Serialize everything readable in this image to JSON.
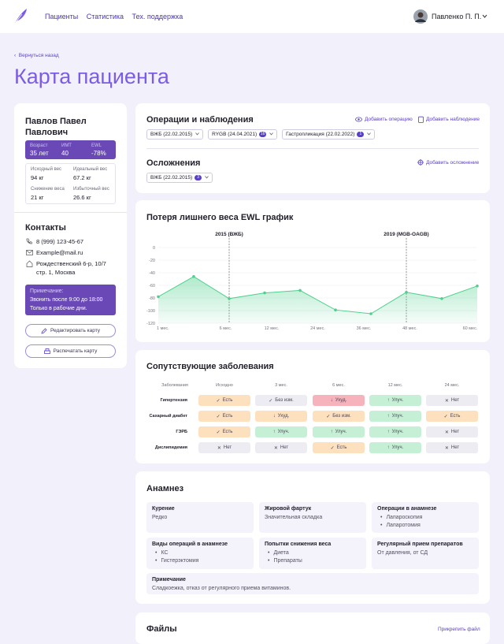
{
  "header": {
    "nav": [
      "Пациенты",
      "Статистика",
      "Тех. поддержка"
    ],
    "user": "Павленко П. П."
  },
  "back": "Вернуться назад",
  "title": "Карта пациента",
  "patient": {
    "name": "Павлов Павел Павлович",
    "stats": [
      {
        "label": "Возраст",
        "value": "35 лет"
      },
      {
        "label": "ИМТ",
        "value": "40"
      },
      {
        "label": "EWL",
        "value": "-78%"
      }
    ],
    "weights": [
      {
        "label": "Исходный вес",
        "value": "94 кг"
      },
      {
        "label": "Идеальный вес",
        "value": "67.2 кг"
      },
      {
        "label": "Снижение веса",
        "value": "21 кг"
      },
      {
        "label": "Избыточный вес",
        "value": "26.6 кг"
      }
    ],
    "contacts_title": "Контакты",
    "phone": "8 (999) 123-45-67",
    "email": "Example@mail.ru",
    "address": [
      "Рождественский 6-р, 10/7",
      "стр. 1, Москва"
    ],
    "note": {
      "title": "Примечание:",
      "lines": [
        "Звонить после 9:00 до 18:00",
        "Только в рабочие дни."
      ]
    },
    "buttons": [
      "Редактировать карту",
      "Распечатать карту"
    ]
  },
  "operations": {
    "title": "Операции и наблюдения",
    "actions": [
      "Добавить операцию",
      "Добавить наблюдение"
    ],
    "chips": [
      {
        "label": "ВЖБ (22.02.2015)"
      },
      {
        "label": "RYGB (24.04.2021)",
        "badge": 16
      },
      {
        "label": "Гастропликация (22.02.2022)",
        "badge": 1
      }
    ]
  },
  "complications": {
    "title": "Осложнения",
    "action": "Добавить осложнение",
    "chips": [
      {
        "label": "ВЖБ (22.02.2015)",
        "badge": 3
      }
    ]
  },
  "chart_data": {
    "type": "line",
    "title": "Потеря лишнего веса EWL график",
    "x": [
      0,
      1,
      2,
      3,
      4,
      5,
      6,
      7,
      8,
      9
    ],
    "values": [
      -78,
      -46,
      -81,
      -72,
      -68,
      -99,
      -105,
      -71,
      -81,
      -61
    ],
    "color": "#4fd08d",
    "xlim": [
      0,
      9
    ],
    "ylim": [
      -120,
      0
    ],
    "yticks": [
      0,
      -20,
      -40,
      -60,
      -80,
      -100,
      -120
    ],
    "xticks": [
      {
        "value": 0.13,
        "label": "1 мес."
      },
      {
        "value": 1.9,
        "label": "6 мес."
      },
      {
        "value": 3.2,
        "label": "12 мес."
      },
      {
        "value": 4.5,
        "label": "24 мес."
      },
      {
        "value": 5.8,
        "label": "36 мес."
      },
      {
        "value": 7.1,
        "label": "48 мес."
      },
      {
        "value": 8.8,
        "label": "60 мес."
      }
    ],
    "annotations": [
      {
        "x": 2,
        "label": "2015 (ВЖБ)"
      },
      {
        "x": 7,
        "label": "2019 (MGB-OAGB)"
      }
    ],
    "grid": true
  },
  "diseases": {
    "title": "Сопутствующие заболевания",
    "columns": [
      "Заболевания",
      "Исходно",
      "3 мес.",
      "6 мес.",
      "12 мес.",
      "24 мес."
    ],
    "rows": [
      {
        "name": "Гипертензия",
        "cells": [
          {
            "icon": "✓",
            "text": "Есть",
            "color": "#fde0bd"
          },
          {
            "icon": "✓",
            "text": "Без изм.",
            "color": "#ececf2"
          },
          {
            "icon": "↓",
            "text": "Ухуд.",
            "color": "#f6b3bc"
          },
          {
            "icon": "↑",
            "text": "Улуч.",
            "color": "#c6f0d5"
          },
          {
            "icon": "✕",
            "text": "Нет",
            "color": "#ececf2"
          }
        ]
      },
      {
        "name": "Сахарный диабет",
        "cells": [
          {
            "icon": "✓",
            "text": "Есть",
            "color": "#fde0bd"
          },
          {
            "icon": "↓",
            "text": "Ухуд.",
            "color": "#fde0bd"
          },
          {
            "icon": "✓",
            "text": "Без изм.",
            "color": "#fde0bd"
          },
          {
            "icon": "↑",
            "text": "Улуч.",
            "color": "#c6f0d5"
          },
          {
            "icon": "✓",
            "text": "Есть",
            "color": "#fde0bd"
          }
        ]
      },
      {
        "name": "ГЭРБ",
        "cells": [
          {
            "icon": "✓",
            "text": "Есть",
            "color": "#fde0bd"
          },
          {
            "icon": "↑",
            "text": "Улуч.",
            "color": "#c6f0d5"
          },
          {
            "icon": "↑",
            "text": "Улуч.",
            "color": "#c6f0d5"
          },
          {
            "icon": "↑",
            "text": "Улуч.",
            "color": "#c6f0d5"
          },
          {
            "icon": "✕",
            "text": "Нет",
            "color": "#ececf2"
          }
        ]
      },
      {
        "name": "Дислипидемия",
        "cells": [
          {
            "icon": "✕",
            "text": "Нет",
            "color": "#ececf2"
          },
          {
            "icon": "✕",
            "text": "Нет",
            "color": "#ececf2"
          },
          {
            "icon": "✓",
            "text": "Есть",
            "color": "#fde0bd"
          },
          {
            "icon": "↑",
            "text": "Улуч.",
            "color": "#c6f0d5"
          },
          {
            "icon": "✕",
            "text": "Нет",
            "color": "#ececf2"
          }
        ]
      }
    ]
  },
  "anamnesis": {
    "title": "Анамнез",
    "items": [
      {
        "label": "Курение",
        "value": "Редко"
      },
      {
        "label": "Жировой фартук",
        "value": "Значительная складка"
      },
      {
        "label": "Операции в анамнезе",
        "list": [
          "Лапароскопия",
          "Лапаротомия"
        ]
      },
      {
        "label": "Виды операций в анамнезе",
        "list": [
          "КС",
          "Гистерэктомия"
        ]
      },
      {
        "label": "Попытки снижения веса",
        "list": [
          "Диета",
          "Препараты"
        ]
      },
      {
        "label": "Регулярный прием препаратов",
        "value": "От давления, от СД"
      }
    ],
    "note": {
      "label": "Примечание",
      "value": "Сладкоежка, отказ от регулярного приема витаминов."
    }
  },
  "files": {
    "title": "Файлы",
    "action": "Прикрепить файл"
  }
}
